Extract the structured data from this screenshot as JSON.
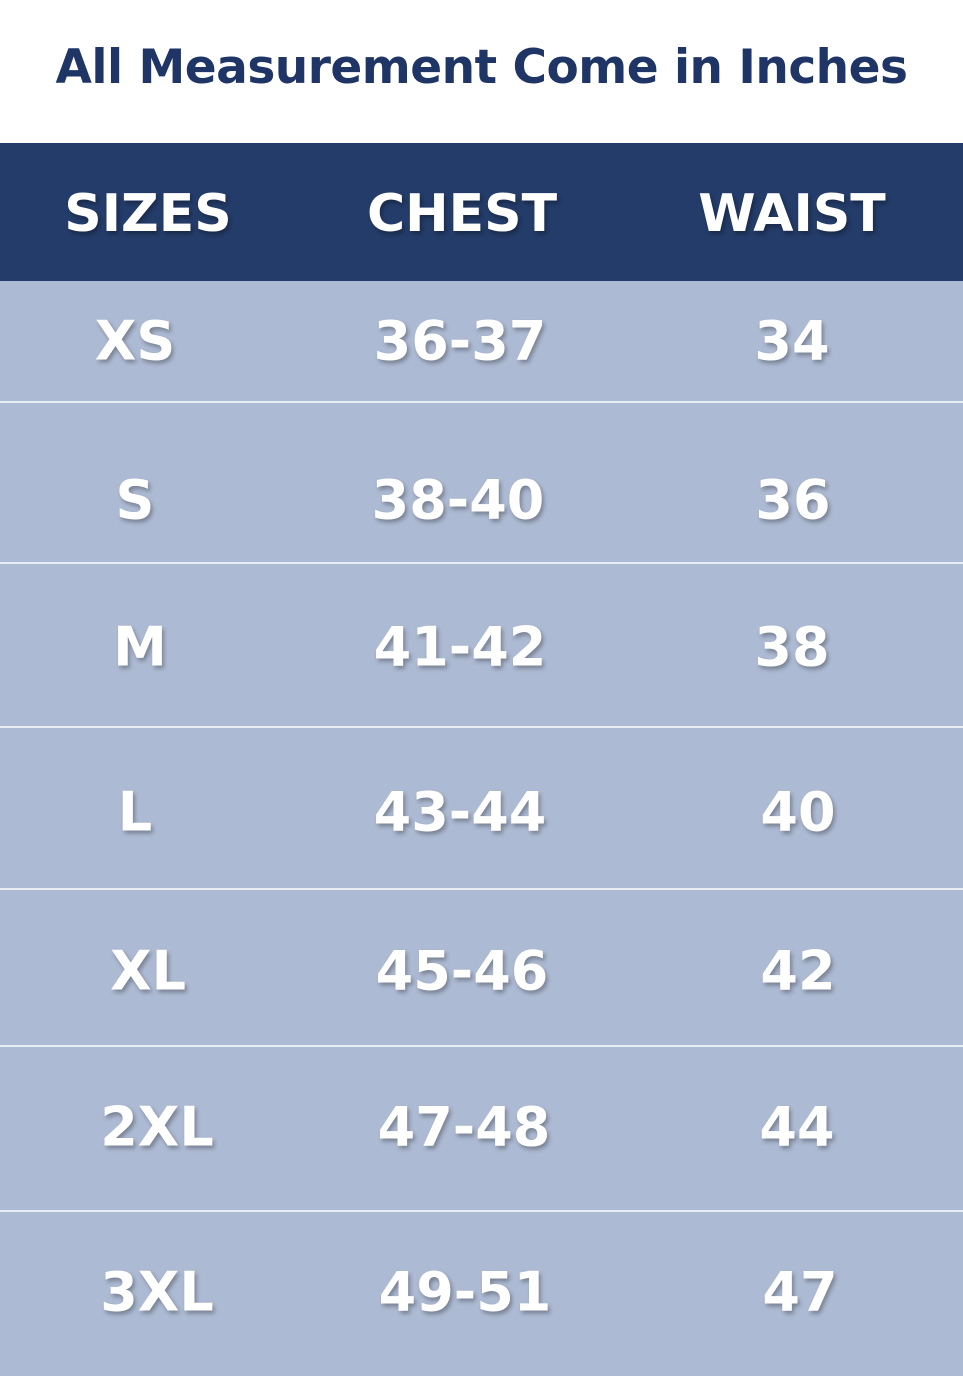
{
  "title": "All Measurement Come in Inches",
  "colors": {
    "header_bg": "#243c69",
    "row_bg": "#adbad3",
    "title": "#1f3566",
    "text": "#ffffff"
  },
  "table": {
    "headers": [
      "SIZES",
      "CHEST",
      "WAIST"
    ],
    "rows": [
      [
        "XS",
        "36-37",
        "34"
      ],
      [
        "S",
        "38-40",
        "36"
      ],
      [
        "M",
        "41-42",
        "38"
      ],
      [
        "L",
        "43-44",
        "40"
      ],
      [
        "XL",
        "45-46",
        "42"
      ],
      [
        "2XL",
        "47-48",
        "44"
      ],
      [
        "3XL",
        "49-51",
        "47"
      ]
    ]
  }
}
